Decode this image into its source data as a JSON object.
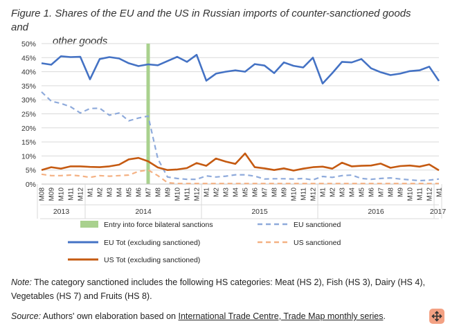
{
  "figure_title_line1": "Figure 1. Shares of the EU and the US in Russian imports of counter-sanctioned goods and",
  "figure_title_line2": "other goods",
  "note_label": "Note:",
  "note_text": "The category sanctioned includes the following HS categories: Meat (HS 2), Fish (HS 3), Dairy (HS 4), Vegetables (HS 7) and Fruits (HS 8).",
  "source_label": "Source:",
  "source_text": "Authors' own elaboration based on",
  "source_link": "International Trade Centre, Trade Map monthly series",
  "source_end": ".",
  "corner_icon": "expand-arrows-icon",
  "chart_data": {
    "type": "line",
    "title": "Figure 1. Shares of the EU and the US in Russian imports of counter-sanctioned goods and other goods",
    "xlabel": "",
    "ylabel": "",
    "ylim": [
      0,
      50
    ],
    "yticks": [
      "0%",
      "5%",
      "10%",
      "15%",
      "20%",
      "25%",
      "30%",
      "35%",
      "40%",
      "45%",
      "50%"
    ],
    "categories": [
      "M08",
      "M09",
      "M10",
      "M11",
      "M12",
      "M1",
      "M2",
      "M3",
      "M4",
      "M5",
      "M6",
      "M7",
      "M8",
      "M9",
      "M10",
      "M11",
      "M12",
      "M1",
      "M2",
      "M3",
      "M4",
      "M5",
      "M6",
      "M7",
      "M8",
      "M9",
      "M10",
      "M11",
      "M12",
      "M1",
      "M2",
      "M3",
      "M4",
      "M5",
      "M6",
      "M7",
      "M8",
      "M9",
      "M10",
      "M11",
      "M12",
      "M1"
    ],
    "years": [
      {
        "label": "2013",
        "start": 0,
        "end": 4
      },
      {
        "label": "2014",
        "start": 5,
        "end": 16
      },
      {
        "label": "2015",
        "start": 17,
        "end": 28
      },
      {
        "label": "2016",
        "start": 29,
        "end": 40
      },
      {
        "label": "2017",
        "start": 41,
        "end": 41
      }
    ],
    "sanction_marker": {
      "label": "Entry into force bilateral sanctions",
      "index": 11,
      "color": "#a9d18e"
    },
    "series": [
      {
        "name": "EU Tot (excluding sanctioned)",
        "color": "#4472c4",
        "dash": "solid",
        "values": [
          43,
          42.5,
          45.5,
          45.2,
          45.3,
          37.3,
          44.5,
          45.2,
          44.7,
          43,
          42,
          42.6,
          42.3,
          43.8,
          45.3,
          43.5,
          46,
          36.8,
          39.3,
          40,
          40.5,
          40,
          42.7,
          42.2,
          39.5,
          43.3,
          42.1,
          41.5,
          45,
          35.8,
          39.5,
          43.5,
          43.3,
          44.5,
          41.2,
          39.8,
          38.8,
          39.3,
          40.2,
          40.5,
          41.8,
          36.7
        ]
      },
      {
        "name": "EU sanctioned",
        "color": "#8eaadb",
        "dash": "dashed",
        "values": [
          32.8,
          29.5,
          28.7,
          27.5,
          25.3,
          26.9,
          27,
          24.5,
          25.3,
          22.5,
          23.5,
          24.2,
          9,
          2.5,
          2,
          1.7,
          1.7,
          2.9,
          2.5,
          2.8,
          3.3,
          3.3,
          2.8,
          1.8,
          1.9,
          1.9,
          1.8,
          2,
          1.5,
          2.7,
          2.4,
          3,
          3.2,
          2,
          1.7,
          2,
          2.2,
          1.8,
          1.5,
          1.2,
          1.4,
          1.8
        ]
      },
      {
        "name": "US Tot (excluding sanctioned)",
        "color": "#c55a11",
        "dash": "solid",
        "values": [
          5,
          6,
          5.5,
          6.3,
          6.3,
          6.1,
          6,
          6.3,
          6.9,
          8.8,
          9.3,
          8.1,
          5.9,
          5,
          5.2,
          5.7,
          7.5,
          6.5,
          9.1,
          8,
          7.2,
          10.9,
          6,
          5.6,
          5,
          5.6,
          4.8,
          5.5,
          6,
          6.2,
          5.5,
          7.6,
          6.3,
          6.5,
          6.6,
          7.3,
          5.8,
          6.4,
          6.6,
          6.2,
          7,
          4.9
        ]
      },
      {
        "name": "US sanctioned",
        "color": "#f4b183",
        "dash": "dashed",
        "values": [
          3.5,
          3,
          3,
          3.2,
          2.9,
          2.4,
          3,
          2.8,
          3,
          3.2,
          4.5,
          5,
          3,
          0.5,
          0.2,
          0.2,
          0.2,
          0.2,
          0.2,
          0.2,
          0.2,
          0.2,
          0.2,
          0.2,
          0.2,
          0.2,
          0.2,
          0.2,
          0.2,
          0.2,
          0.2,
          0.2,
          0.2,
          0.2,
          0.2,
          0.2,
          0.2,
          0.2,
          0.2,
          0.2,
          0.2,
          0.2
        ]
      }
    ],
    "legend": [
      {
        "label": "Entry into force bilateral sanctions",
        "kind": "bar",
        "color": "#a9d18e"
      },
      {
        "label": "EU sanctioned",
        "kind": "dashed",
        "color": "#8eaadb"
      },
      {
        "label": "EU Tot (excluding sanctioned)",
        "kind": "solid",
        "color": "#4472c4"
      },
      {
        "label": "US sanctioned",
        "kind": "dashed",
        "color": "#f4b183"
      },
      {
        "label": "US Tot (excluding sanctioned)",
        "kind": "solid",
        "color": "#c55a11"
      }
    ]
  }
}
